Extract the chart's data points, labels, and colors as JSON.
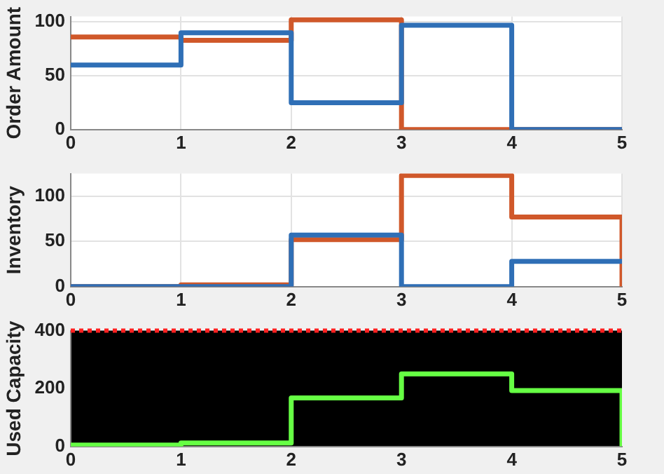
{
  "chart_data": [
    {
      "type": "step",
      "ylabel": "Order Amount",
      "x": [
        0,
        1,
        2,
        3,
        4,
        5
      ],
      "xlim": [
        0,
        5
      ],
      "xticks": [
        0,
        1,
        2,
        3,
        4,
        5
      ],
      "ylim": [
        0,
        105
      ],
      "yticks": [
        0,
        50,
        100
      ],
      "grid": true,
      "series": [
        {
          "color": "#2f6fb6",
          "values": [
            60,
            90,
            25,
            97,
            0,
            0
          ]
        },
        {
          "color": "#d0582a",
          "values": [
            86,
            83,
            102,
            0,
            0,
            0
          ]
        }
      ]
    },
    {
      "type": "step",
      "ylabel": "Inventory",
      "x": [
        0,
        1,
        2,
        3,
        4,
        5
      ],
      "xlim": [
        0,
        5
      ],
      "xticks": [
        0,
        1,
        2,
        3,
        4,
        5
      ],
      "ylim": [
        0,
        125
      ],
      "yticks": [
        0,
        50,
        100
      ],
      "grid": true,
      "series": [
        {
          "color": "#2f6fb6",
          "values": [
            0,
            0,
            57,
            0,
            28,
            28
          ]
        },
        {
          "color": "#d0582a",
          "values": [
            0,
            2,
            52,
            123,
            77,
            0
          ]
        }
      ]
    },
    {
      "type": "step",
      "ylabel": "Used Capacity",
      "x": [
        0,
        1,
        2,
        3,
        4,
        5
      ],
      "xlim": [
        0,
        5
      ],
      "xticks": [
        0,
        1,
        2,
        3,
        4,
        5
      ],
      "ylim": [
        0,
        400
      ],
      "yticks": [
        0,
        200,
        400
      ],
      "grid": false,
      "ref_lines": [
        {
          "axis": "y",
          "value": 400,
          "color": "#ff2020",
          "line_style": "dotted"
        }
      ],
      "series": [
        {
          "color": "#66ff44",
          "values": [
            5,
            12,
            168,
            251,
            193,
            0
          ]
        }
      ]
    }
  ]
}
